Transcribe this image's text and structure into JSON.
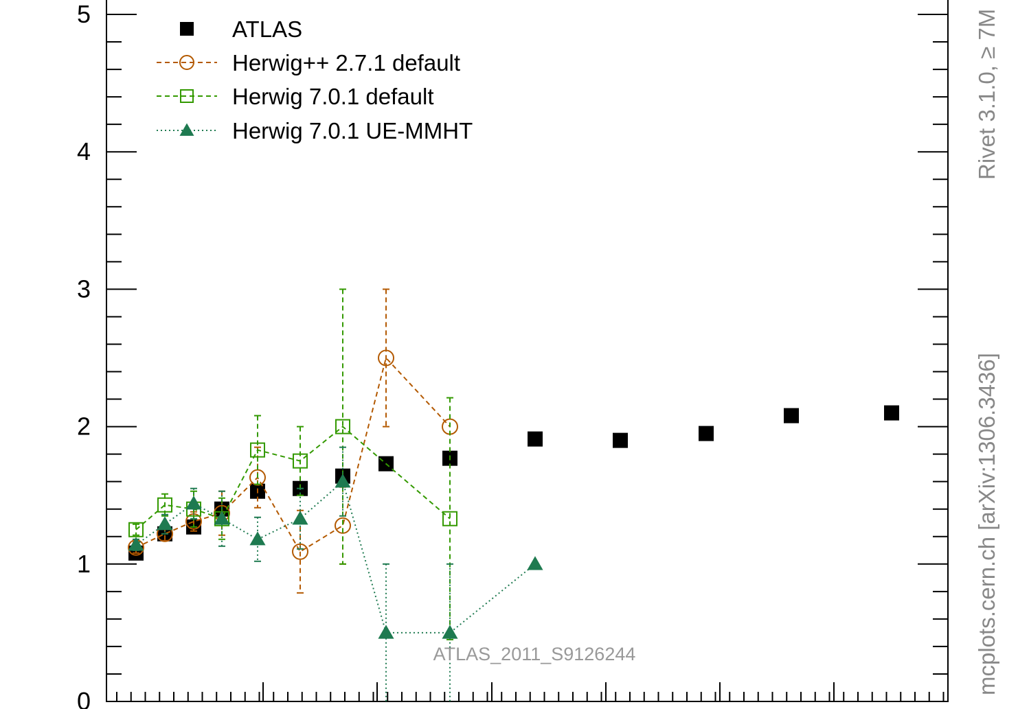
{
  "chart_data": {
    "type": "scatter",
    "ylim": [
      0,
      5
    ],
    "y_ticks": [
      "0",
      "1",
      "2",
      "3",
      "4",
      "5"
    ],
    "grid": false,
    "legend_position": "top-left",
    "watermark": "ATLAS_2011_S9126244",
    "series": [
      {
        "name": "ATLAS",
        "color": "#000000",
        "marker": "filled-square",
        "line": "none",
        "x": [
          30,
          40,
          50,
          60,
          72,
          88,
          102,
          120,
          140,
          170,
          200,
          230,
          260,
          295
        ],
        "y": [
          1.08,
          1.22,
          1.27,
          1.4,
          1.53,
          1.55,
          1.64,
          1.73,
          1.77,
          1.91,
          1.9,
          1.95,
          2.08,
          2.1
        ]
      },
      {
        "name": "Herwig++ 2.7.1 default",
        "color": "#b35900",
        "marker": "open-circle",
        "line": "dashed",
        "x": [
          30,
          40,
          50,
          60,
          72,
          88,
          102,
          120,
          140
        ],
        "y": [
          1.12,
          1.22,
          1.31,
          1.37,
          1.63,
          1.09,
          1.28,
          2.5,
          2.0
        ],
        "err": [
          0.04,
          0.05,
          0.07,
          0.16,
          0.22,
          0.3,
          0.28,
          0.5,
          0.0
        ]
      },
      {
        "name": "Herwig 7.0.1 default",
        "color": "#339900",
        "marker": "open-square",
        "line": "dashed",
        "x": [
          30,
          40,
          50,
          60,
          72,
          88,
          102,
          140
        ],
        "y": [
          1.25,
          1.43,
          1.4,
          1.33,
          1.83,
          1.75,
          2.0,
          1.33
        ],
        "err": [
          0.04,
          0.08,
          0.13,
          0.15,
          0.25,
          0.25,
          1.0,
          0.88
        ]
      },
      {
        "name": "Herwig 7.0.1 UE-MMHT",
        "color": "#1e7a50",
        "marker": "filled-triangle",
        "line": "dotted",
        "x": [
          30,
          40,
          50,
          60,
          72,
          88,
          102,
          120,
          140,
          170
        ],
        "y": [
          1.14,
          1.29,
          1.44,
          1.33,
          1.18,
          1.33,
          1.6,
          0.5,
          0.5,
          1.0
        ],
        "err": [
          0.04,
          0.07,
          0.11,
          0.2,
          0.16,
          0.22,
          0.25,
          0.5,
          0.5,
          0.0
        ]
      }
    ]
  },
  "side_labels": {
    "right_top": "Rivet 3.1.0, ≥ 7M",
    "right_bottom": "mcplots.cern.ch [arXiv:1306.3436]"
  }
}
